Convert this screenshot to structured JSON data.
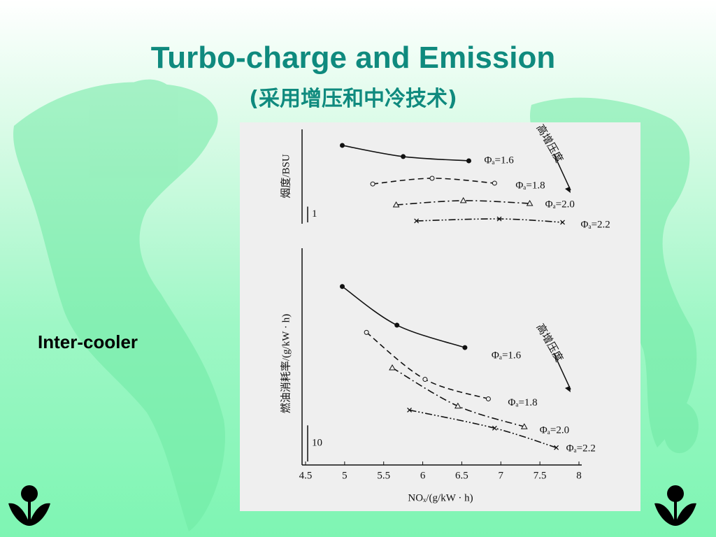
{
  "slide": {
    "title": "Turbo-charge and Emission",
    "subtitle": "(采用增压和中冷技术)",
    "label": "Inter-cooler"
  },
  "chart_data": [
    {
      "type": "line",
      "y_label": "烟度/BSU",
      "annotation": "高增压度",
      "scale_bar": 1,
      "xlim": [
        4.5,
        8
      ],
      "ylim": [
        0,
        6
      ],
      "series": [
        {
          "name": "Φₐ=1.6",
          "color": "#111111",
          "dash": "solid",
          "marker": "filled-circle",
          "x": [
            4.97,
            5.75,
            6.59
          ],
          "values": [
            4.98,
            4.27,
            4.0
          ]
        },
        {
          "name": "Φₐ=1.8",
          "color": "#111111",
          "dash": "dashed",
          "marker": "open-circle",
          "x": [
            5.36,
            6.12,
            6.92
          ],
          "values": [
            2.53,
            2.89,
            2.58
          ]
        },
        {
          "name": "Φₐ=2.0",
          "color": "#111111",
          "dash": "dashdot",
          "marker": "triangle",
          "x": [
            5.66,
            6.52,
            7.37
          ],
          "values": [
            1.2,
            1.47,
            1.29
          ]
        },
        {
          "name": "Φₐ=2.2",
          "color": "#111111",
          "dash": "dashdotdot",
          "marker": "x",
          "x": [
            5.92,
            6.98,
            7.79
          ],
          "values": [
            0.18,
            0.31,
            0.09
          ]
        }
      ]
    },
    {
      "type": "line",
      "y_label": "燃油消耗率/(g/kW · h)",
      "x_label": "NOₓ/(g/kW · h)",
      "annotation": "高增压度",
      "scale_bar": 10,
      "xlim": [
        4.5,
        8
      ],
      "ylim": [
        0,
        60
      ],
      "xticks": [
        4.5,
        5,
        5.5,
        6,
        6.5,
        7,
        7.5,
        8
      ],
      "series": [
        {
          "name": "Φₐ=1.6",
          "color": "#111111",
          "dash": "solid",
          "marker": "filled-circle",
          "x": [
            4.97,
            5.67,
            6.54
          ],
          "values": [
            49.4,
            38.7,
            32.5
          ]
        },
        {
          "name": "Φₐ=1.8",
          "color": "#111111",
          "dash": "dashed",
          "marker": "open-circle",
          "x": [
            5.28,
            6.03,
            6.84
          ],
          "values": [
            36.7,
            23.7,
            18.3
          ]
        },
        {
          "name": "Φₐ=2.0",
          "color": "#111111",
          "dash": "dashdot",
          "marker": "triangle",
          "x": [
            5.61,
            6.45,
            7.3
          ],
          "values": [
            26.9,
            16.3,
            10.6
          ]
        },
        {
          "name": "Φₐ=2.2",
          "color": "#111111",
          "dash": "dashdotdot",
          "marker": "x",
          "x": [
            5.83,
            6.92,
            7.71
          ],
          "values": [
            15.2,
            10.2,
            4.8
          ]
        }
      ]
    }
  ]
}
